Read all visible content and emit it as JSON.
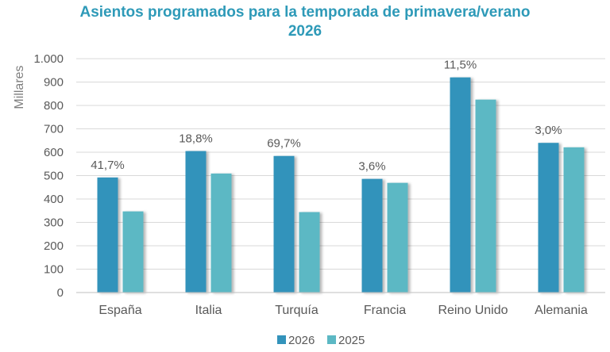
{
  "chart_data": {
    "type": "bar",
    "title_line1": "Asientos programados para la temporada de primavera/verano",
    "title_line2": "2026",
    "ylabel": "Millares",
    "xlabel": "",
    "ylim": [
      0,
      1000
    ],
    "yticks": [
      0,
      100,
      200,
      300,
      400,
      500,
      600,
      700,
      800,
      900,
      1000
    ],
    "ytick_labels": [
      "0",
      "100",
      "200",
      "300",
      "400",
      "500",
      "600",
      "700",
      "800",
      "900",
      "1.000"
    ],
    "categories": [
      "España",
      "Italia",
      "Turquía",
      "Francia",
      "Reino Unido",
      "Alemania"
    ],
    "series": [
      {
        "name": "2026",
        "color": "#3393bb",
        "values": [
          492,
          605,
          584,
          486,
          920,
          640
        ]
      },
      {
        "name": "2025",
        "color": "#5cb8c4",
        "values": [
          347,
          509,
          344,
          469,
          825,
          621
        ]
      }
    ],
    "annotations": [
      "41,7%",
      "18,8%",
      "69,7%",
      "3,6%",
      "11,5%",
      "3,0%"
    ],
    "grid": true,
    "legend_position": "bottom-center"
  }
}
